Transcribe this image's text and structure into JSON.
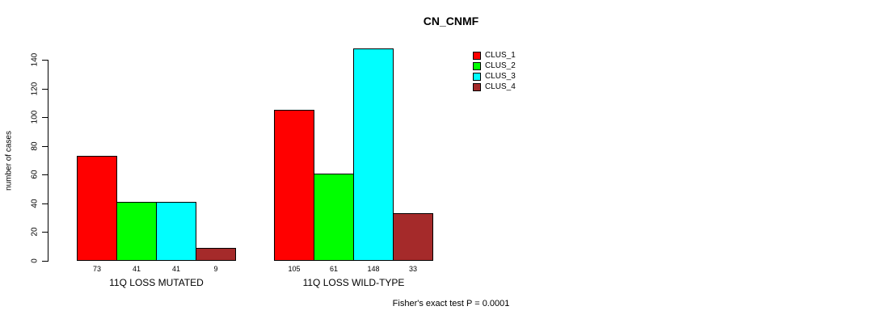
{
  "chart_data": {
    "type": "bar",
    "title": "CN_CNMF",
    "ylabel": "number of cases",
    "xlabel": "",
    "categories": [
      "11Q LOSS MUTATED",
      "11Q LOSS WILD-TYPE"
    ],
    "series": [
      {
        "name": "CLUS_1",
        "color": "#FF0000",
        "values": [
          73,
          105
        ]
      },
      {
        "name": "CLUS_2",
        "color": "#00FF00",
        "values": [
          41,
          61
        ]
      },
      {
        "name": "CLUS_3",
        "color": "#00FFFF",
        "values": [
          41,
          148
        ]
      },
      {
        "name": "CLUS_4",
        "color": "#A52A2A",
        "values": [
          9,
          33
        ]
      }
    ],
    "yticks": [
      0,
      20,
      40,
      60,
      80,
      100,
      120,
      140
    ],
    "ylim": [
      0,
      148
    ],
    "grid": false,
    "bar_value_labels_shown": true,
    "legend_position": "top-right",
    "annotation": "Fisher's exact test P = 0.0001"
  },
  "colors": {
    "background": "#FFFFFF",
    "text": "#000000",
    "axis": "#000000"
  }
}
